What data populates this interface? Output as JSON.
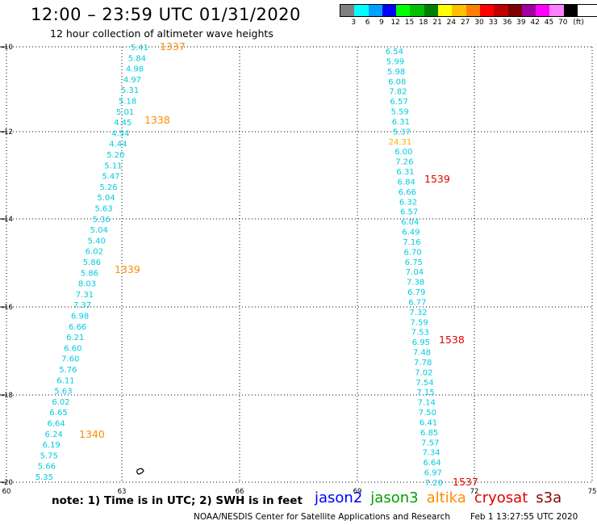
{
  "title": "12:00 – 23:59 UTC 01/31/2020",
  "subtitle": "12 hour collection of altimeter wave heights",
  "legend": {
    "colors": [
      "#808080",
      "#00ffff",
      "#00a0ff",
      "#0000ff",
      "#00ff00",
      "#00c000",
      "#008000",
      "#ffff00",
      "#ffc000",
      "#ff8000",
      "#ff0000",
      "#c00000",
      "#800000",
      "#a000a0",
      "#ff00ff",
      "#ff80ff",
      "#000000"
    ],
    "labels": [
      "3",
      "6",
      "9",
      "12",
      "15",
      "18",
      "21",
      "24",
      "27",
      "30",
      "33",
      "36",
      "39",
      "42",
      "45",
      "70",
      "(ft)"
    ]
  },
  "axes": {
    "x_labels": [
      "60",
      "63",
      "66",
      "69",
      "72",
      "75"
    ],
    "y_labels": [
      "-10",
      "-12",
      "-14",
      "-16",
      "-18",
      "-20"
    ]
  },
  "tracks": {
    "track1_values": [
      "5.41",
      "5.84",
      "4.98",
      "4.97",
      "5.31",
      "5.18",
      "5.01",
      "4.45",
      "4.54",
      "4.44",
      "5.20",
      "5.11",
      "5.47",
      "5.26",
      "5.04",
      "5.63",
      "5.36",
      "5.04",
      "5.40",
      "6.02",
      "5.86",
      "5.86",
      "8.03",
      "7.31",
      "7.37",
      "6.98",
      "6.66",
      "6.21",
      "6.60",
      "7.60",
      "5.76",
      "6.11",
      "5.63",
      "6.02",
      "6.65",
      "6.64",
      "6.24",
      "6.19",
      "5.75",
      "5.66",
      "5.35"
    ],
    "track1_times": [
      {
        "text": "1337"
      },
      {
        "text": "1338"
      },
      {
        "text": "1339"
      },
      {
        "text": "1340"
      }
    ],
    "track2_values": [
      "6.54",
      "5.99",
      "5.98",
      "6.08",
      "7.82",
      "6.57",
      "5.59",
      "6.31",
      "5.37",
      "24.31",
      "6.00",
      "7.26",
      "6.31",
      "6.84",
      "6.66",
      "6.32",
      "6.57",
      "6.04",
      "6.49",
      "7.16",
      "6.70",
      "6.75",
      "7.04",
      "7.38",
      "6.79",
      "6.77",
      "7.32",
      "7.59",
      "7.53",
      "6.95",
      "7.48",
      "7.78",
      "7.02",
      "7.54",
      "7.15",
      "7.14",
      "7.50",
      "6.41",
      "6.85",
      "7.57",
      "7.34",
      "6.64",
      "6.97",
      "7.20"
    ],
    "track2_times": [
      {
        "text": "1539"
      },
      {
        "text": "1538"
      },
      {
        "text": "1537"
      }
    ]
  },
  "footer": {
    "note": "note:  1) Time is in UTC;  2) SWH is in feet",
    "satellites": [
      {
        "name": "jason2",
        "color": "#0000ff"
      },
      {
        "name": "jason3",
        "color": "#00a000"
      },
      {
        "name": "altika",
        "color": "#ff8c00"
      },
      {
        "name": "cryosat",
        "color": "#e00000"
      },
      {
        "name": "s3a",
        "color": "#8b0000"
      }
    ],
    "credit": "NOAA/NESDIS Center for Satellite Applications and Research",
    "timestamp": "Feb  1 13:27:55 UTC 2020"
  },
  "colors": {
    "cyan_value": "#00ccdd",
    "orange_time": "#ff8c00",
    "red_time": "#e00000",
    "orange_value": "#ffb000"
  }
}
